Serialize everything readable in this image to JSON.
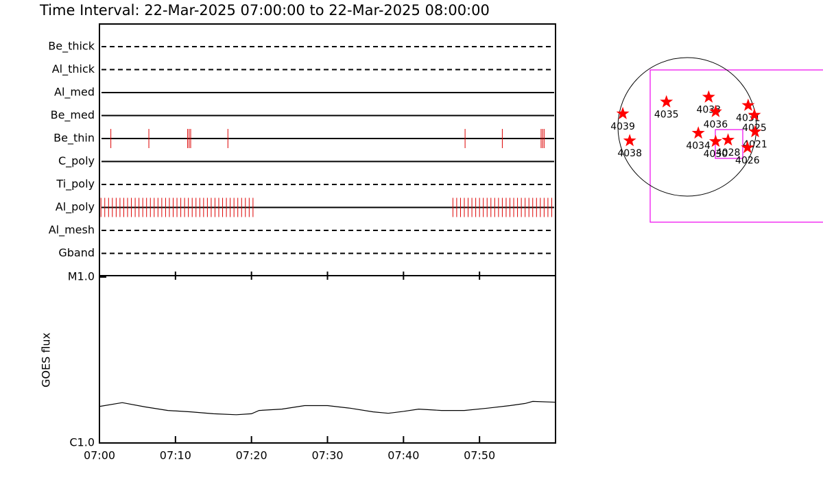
{
  "chart_data": [
    {
      "type": "timeline",
      "title": "Time Interval: 22-Mar-2025 07:00:00 to 22-Mar-2025 08:00:00",
      "xlim": [
        0,
        60
      ],
      "series": [
        {
          "name": "Be_thick",
          "style": "dashed",
          "color": "#dd0000",
          "events": []
        },
        {
          "name": "Al_thick",
          "style": "dashed",
          "color": "#dd0000",
          "events": []
        },
        {
          "name": "Al_med",
          "style": "solid",
          "color": "#dd0000",
          "events": []
        },
        {
          "name": "Be_med",
          "style": "solid",
          "color": "#dd0000",
          "events": []
        },
        {
          "name": "Be_thin",
          "style": "solid",
          "color": "#dd0000",
          "events": [
            1.5,
            6.5,
            11.6,
            11.8,
            12.0,
            16.9,
            48.1,
            53.0,
            58.1,
            58.3,
            58.5
          ]
        },
        {
          "name": "C_poly",
          "style": "solid",
          "color": "#dd0000",
          "events": []
        },
        {
          "name": "Ti_poly",
          "style": "dashed",
          "color": "#dd0000",
          "events": []
        },
        {
          "name": "Al_poly",
          "style": "solid",
          "color": "#dd0000",
          "events": [
            0.2,
            0.7,
            1.2,
            1.7,
            2.2,
            2.7,
            3.2,
            3.7,
            4.2,
            4.7,
            5.2,
            5.7,
            6.2,
            6.7,
            7.2,
            7.7,
            8.2,
            8.7,
            9.2,
            9.7,
            10.2,
            10.7,
            11.2,
            11.7,
            12.2,
            12.7,
            13.2,
            13.7,
            14.2,
            14.7,
            15.2,
            15.7,
            16.2,
            16.7,
            17.2,
            17.7,
            18.2,
            18.7,
            19.2,
            19.7,
            20.2,
            46.5,
            47.0,
            47.5,
            48.0,
            48.5,
            49.0,
            49.5,
            50.0,
            50.5,
            51.0,
            51.5,
            52.0,
            52.5,
            53.0,
            53.5,
            54.0,
            54.5,
            55.0,
            55.5,
            56.0,
            56.5,
            57.0,
            57.5,
            58.0,
            58.5,
            59.0,
            59.5
          ]
        },
        {
          "name": "Al_mesh",
          "style": "dashed",
          "color": "#dd0000",
          "events": []
        },
        {
          "name": "Gband",
          "style": "dashed",
          "color": "#dd0000",
          "events": []
        }
      ]
    },
    {
      "type": "line",
      "ylabel": "GOES flux",
      "log_scale": true,
      "xlim": [
        0,
        60
      ],
      "xticks": [
        {
          "value": 0,
          "label": "07:00"
        },
        {
          "value": 10,
          "label": "07:10"
        },
        {
          "value": 20,
          "label": "07:20"
        },
        {
          "value": 30,
          "label": "07:30"
        },
        {
          "value": 40,
          "label": "07:40"
        },
        {
          "value": 50,
          "label": "07:50"
        }
      ],
      "ylim": [
        1e-06,
        1e-05
      ],
      "yticks": [
        {
          "value": 1e-06,
          "label": "C1.0"
        },
        {
          "value": 1e-05,
          "label": "M1.0"
        }
      ],
      "series": [
        {
          "color": "#000000",
          "x": [
            0,
            3,
            6,
            9,
            12,
            15,
            18,
            20,
            21,
            24,
            27,
            30,
            33,
            36,
            38,
            40,
            42,
            45,
            48,
            51,
            54,
            56,
            57,
            60
          ],
          "values": [
            1.66e-06,
            1.75e-06,
            1.65e-06,
            1.57e-06,
            1.54e-06,
            1.5e-06,
            1.48e-06,
            1.5e-06,
            1.57e-06,
            1.6e-06,
            1.68e-06,
            1.68e-06,
            1.62e-06,
            1.54e-06,
            1.51e-06,
            1.55e-06,
            1.6e-06,
            1.57e-06,
            1.57e-06,
            1.62e-06,
            1.68e-06,
            1.73e-06,
            1.78e-06,
            1.76e-06
          ]
        }
      ]
    },
    {
      "type": "scatter",
      "xlim": [
        -1,
        1
      ],
      "ylim": [
        -1,
        1
      ],
      "series": [
        {
          "color": "#ff0000",
          "labels": [
            "4039",
            "4035",
            "4033",
            "4036",
            "4031",
            "4025",
            "4034",
            "4021",
            "4038",
            "4030",
            "4028",
            "4026"
          ],
          "x": [
            -0.93,
            -0.3,
            0.31,
            0.41,
            0.88,
            0.97,
            0.16,
            0.98,
            -0.83,
            0.41,
            0.59,
            0.87
          ],
          "y": [
            0.19,
            0.36,
            0.43,
            0.22,
            0.31,
            0.17,
            -0.09,
            -0.07,
            -0.2,
            -0.21,
            -0.19,
            -0.3
          ]
        }
      ]
    }
  ]
}
